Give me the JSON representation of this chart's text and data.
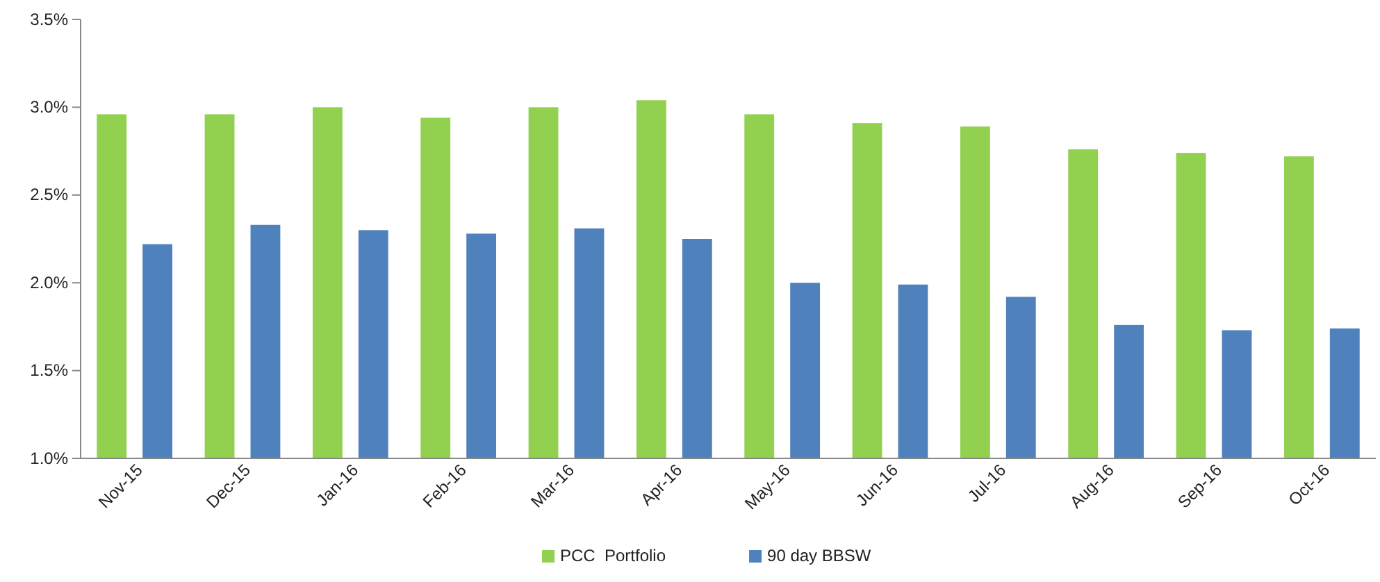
{
  "chart_data": {
    "type": "bar",
    "categories": [
      "Nov-15",
      "Dec-15",
      "Jan-16",
      "Feb-16",
      "Mar-16",
      "Apr-16",
      "May-16",
      "Jun-16",
      "Jul-16",
      "Aug-16",
      "Sep-16",
      "Oct-16"
    ],
    "series": [
      {
        "name": "PCC  Portfolio",
        "color": "#92d050",
        "values": [
          2.96,
          2.96,
          3.0,
          2.94,
          3.0,
          3.04,
          2.96,
          2.91,
          2.89,
          2.76,
          2.74,
          2.72
        ]
      },
      {
        "name": "90 day BBSW",
        "color": "#4f81bd",
        "values": [
          2.22,
          2.33,
          2.3,
          2.28,
          2.31,
          2.25,
          2.0,
          1.99,
          1.92,
          1.76,
          1.73,
          1.74
        ]
      }
    ],
    "ylim": [
      1.0,
      3.5
    ],
    "yticks": [
      {
        "value": 1.0,
        "label": "1.0%"
      },
      {
        "value": 1.5,
        "label": "1.5%"
      },
      {
        "value": 2.0,
        "label": "2.0%"
      },
      {
        "value": 2.5,
        "label": "2.5%"
      },
      {
        "value": 3.0,
        "label": "3.0%"
      },
      {
        "value": 3.5,
        "label": "3.5%"
      }
    ],
    "legend": "bottom"
  }
}
